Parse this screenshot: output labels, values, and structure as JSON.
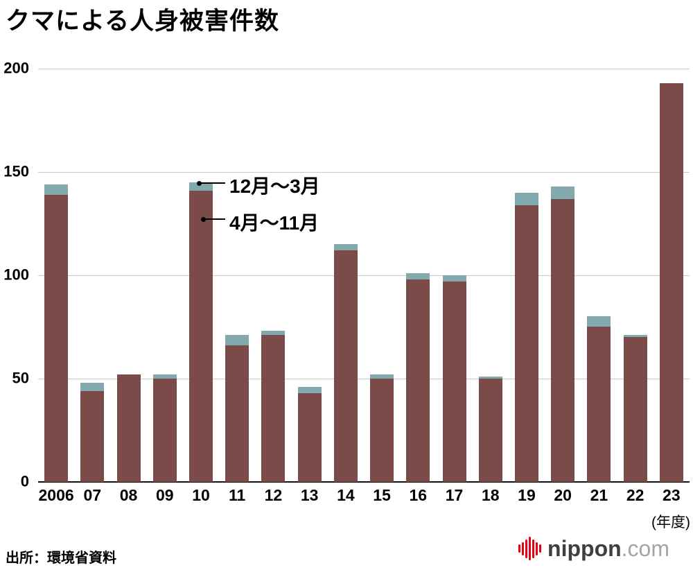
{
  "title": "クマによる人身被害件数",
  "source_note": "出所：環境省資料",
  "logo": {
    "name": "nippon",
    "tld": ".com",
    "icon": "soundwave-bars-icon",
    "icon_color": "#e60012"
  },
  "chart_data": {
    "type": "bar",
    "stacked": true,
    "title": "クマによる人身被害件数",
    "xlabel": "(年度)",
    "ylabel": "",
    "ylim": [
      0,
      200
    ],
    "yticks": [
      0,
      50,
      100,
      150,
      200
    ],
    "grid": true,
    "legend_position": "annotation-on-2010-bar",
    "categories": [
      "2006",
      "07",
      "08",
      "09",
      "10",
      "11",
      "12",
      "13",
      "14",
      "15",
      "16",
      "17",
      "18",
      "19",
      "20",
      "21",
      "22",
      "23"
    ],
    "series": [
      {
        "name": "4月〜11月",
        "color": "#7a4b48",
        "values": [
          139,
          44,
          52,
          50,
          141,
          66,
          71,
          43,
          112,
          50,
          98,
          97,
          50,
          134,
          137,
          75,
          70,
          193
        ]
      },
      {
        "name": "12月〜3月",
        "color": "#82aaae",
        "values": [
          5,
          4,
          0,
          2,
          4,
          5,
          2,
          3,
          3,
          2,
          3,
          3,
          1,
          6,
          6,
          5,
          1,
          0
        ]
      }
    ],
    "totals": [
      144,
      48,
      52,
      52,
      145,
      71,
      73,
      46,
      115,
      52,
      101,
      100,
      51,
      140,
      143,
      80,
      71,
      193
    ],
    "annotations": [
      {
        "text": "12月〜3月",
        "points_to": "top (winter) segment of 2010 bar"
      },
      {
        "text": "4月〜11月",
        "points_to": "lower (Apr-Nov) segment of 2010 bar"
      }
    ]
  }
}
